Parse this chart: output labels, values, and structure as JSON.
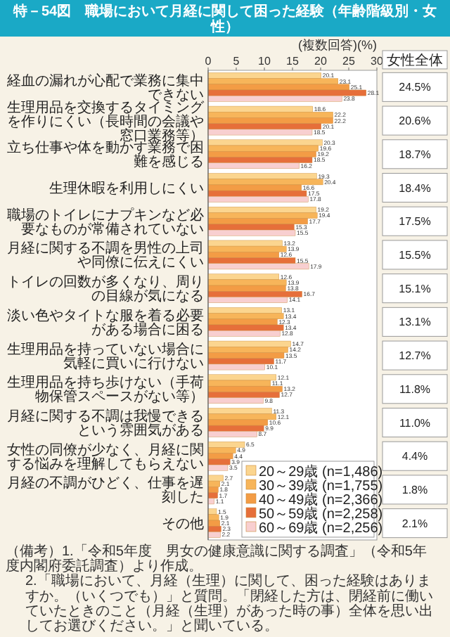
{
  "chart_data": {
    "type": "bar",
    "orientation": "horizontal",
    "title": "特－54図　職場において月経に関して困った経験（年齢階級別・女性）",
    "xlabel": "(複数回答)(%)",
    "categories": [
      "経血の漏れが心配で業務に集中できない",
      "生理用品を交換するタイミングを作りにくい（長時間の会議や窓口業務等）",
      "立ち仕事や体を動かす業務で困難を感じる",
      "生理休暇を利用しにくい",
      "職場のトイレにナプキンなど必要なものが常備されていない",
      "月経に関する不調を男性の上司や同僚に伝えにくい",
      "トイレの回数が多くなり、周りの目線が気になる",
      "淡い色やタイトな服を着る必要がある場合に困る",
      "生理用品を持っていない場合に気軽に買いに行けない",
      "生理用品を持ち歩けない（手荷物保管スペースがない等）",
      "月経に関する不調は我慢できるという雰囲気がある",
      "女性の同僚が少なく、月経に関する悩みを理解してもらえない",
      "月経の不調がひどく、仕事を遅刻した",
      "その他"
    ],
    "series": [
      {
        "name": "20～29歳 (n=1,486)",
        "color": "#fbd58f",
        "values": [
          20.1,
          18.6,
          20.3,
          19.3,
          19.2,
          13.2,
          12.6,
          13.1,
          14.7,
          12.1,
          11.3,
          6.5,
          2.7,
          1.5
        ]
      },
      {
        "name": "30～39歳 (n=1,755)",
        "color": "#f7b55a",
        "values": [
          23.1,
          22.2,
          19.6,
          20.4,
          19.4,
          13.9,
          13.9,
          13.4,
          14.2,
          11.1,
          12.1,
          4.9,
          2.1,
          1.9
        ]
      },
      {
        "name": "40～49歳 (n=2,366)",
        "color": "#f39c45",
        "values": [
          25.1,
          22.2,
          19.2,
          16.6,
          17.7,
          12.6,
          13.8,
          12.3,
          13.5,
          13.2,
          10.6,
          4.4,
          1.8,
          2.1
        ]
      },
      {
        "name": "50～59歳 (n=2,258)",
        "color": "#e66f3a",
        "values": [
          28.1,
          20.1,
          18.5,
          17.5,
          15.3,
          15.5,
          16.7,
          13.4,
          11.7,
          12.7,
          9.9,
          3.9,
          1.7,
          2.3
        ]
      },
      {
        "name": "60～69歳 (n=2,256)",
        "color": "#f8cfd0",
        "values": [
          23.8,
          18.5,
          16.2,
          17.8,
          15.5,
          17.9,
          14.1,
          12.8,
          10.1,
          9.8,
          8.7,
          3.5,
          1.1,
          2.2
        ]
      }
    ],
    "xlim": [
      0,
      30
    ],
    "xticks": [
      0,
      5,
      10,
      15,
      20,
      25,
      30
    ],
    "data_labels": true,
    "legend": "bottom right",
    "annotations": [
      "女性全体",
      "（備考）1.「令和5年度　男女の健康意識に関する調査」（令和5年度内閣府委託調査）より作成。",
      "2.「職場において、月経（生理）に関して、困った経験はありますか。（いくつでも）」と質問。「閉経した方は、閉経前に働いていたときのこと（月経（生理）があった時の事）全体を思い出してお選びください。」と聞いている。",
      "24.5%",
      "20.6%",
      "18.7%",
      "18.4%",
      "17.5%",
      "15.5%",
      "15.1%",
      "13.1%",
      "12.7%",
      "11.8%",
      "11.0%",
      "4.4%",
      "1.8%",
      "2.1%"
    ]
  }
}
